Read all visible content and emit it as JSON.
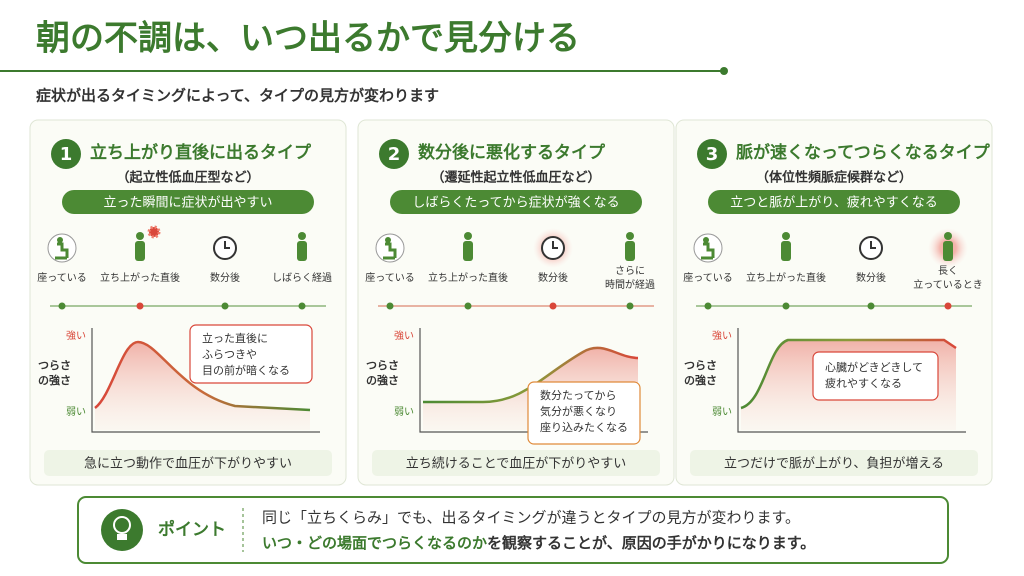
{
  "header": {
    "title": "朝の不調は、いつ出るかで見分ける",
    "subtitle": "症状が出るタイミングによって、タイプの見方が変わります"
  },
  "panels": [
    {
      "number": "1",
      "title": "立ち上がり直後に出るタイプ",
      "subtitle": "（起立性低血圧型など）",
      "banner": "立った瞬間に症状が出やすい",
      "timeline": [
        [
          "座っている"
        ],
        [
          "立ち上がった直後"
        ],
        [
          "数分後"
        ],
        [
          "しばらく経過"
        ]
      ],
      "y_high": "強い",
      "y_low": "弱い",
      "y_label": [
        "つらさ",
        "の強さ"
      ],
      "callout": [
        "立った直後に",
        "ふらつきや",
        "目の前が暗くなる"
      ],
      "footer": "急に立つ動作で血圧が下がりやすい"
    },
    {
      "number": "2",
      "title": "数分後に悪化するタイプ",
      "subtitle": "（遷延性起立性低血圧など）",
      "banner": "しばらくたってから症状が強くなる",
      "timeline": [
        [
          "座っている"
        ],
        [
          "立ち上がった直後"
        ],
        [
          "数分後"
        ],
        [
          "さらに",
          "時間が経過"
        ]
      ],
      "y_high": "強い",
      "y_low": "弱い",
      "y_label": [
        "つらさ",
        "の強さ"
      ],
      "callout": [
        "数分たってから",
        "気分が悪くなり",
        "座り込みたくなる"
      ],
      "footer": "立ち続けることで血圧が下がりやすい"
    },
    {
      "number": "3",
      "title": "脈が速くなってつらくなるタイプ",
      "subtitle": "（体位性頻脈症候群など）",
      "banner": "立つと脈が上がり、疲れやすくなる",
      "timeline": [
        [
          "座っている"
        ],
        [
          "立ち上がった直後"
        ],
        [
          "数分後"
        ],
        [
          "長く",
          "立っているとき"
        ]
      ],
      "y_high": "強い",
      "y_low": "弱い",
      "y_label": [
        "つらさ",
        "の強さ"
      ],
      "callout": [
        "心臓がどきどきして",
        "疲れやすくなる"
      ],
      "footer": "立つだけで脈が上がり、負担が増える"
    }
  ],
  "point": {
    "label": "ポイント",
    "line1": "同じ「立ちくらみ」でも、出るタイミングが違うとタイプの見方が変わります。",
    "line2_highlight": "いつ・どの場面でつらくなるのか",
    "line2_rest": "を観察することが、原因の手がかりになります。"
  }
}
